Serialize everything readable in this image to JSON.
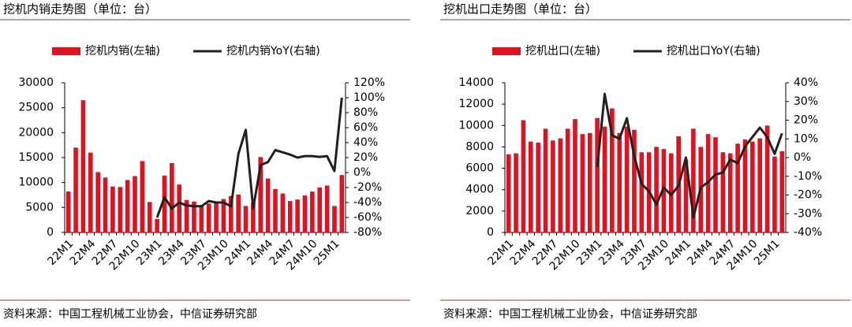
{
  "chart_data": [
    {
      "type": "bar-line",
      "title": "挖机内销走势图（单位：台）",
      "source": "资料来源：中国工程机械工业协会，中信证券研究部",
      "categories": [
        "22M1",
        null,
        null,
        "22M4",
        null,
        null,
        "22M7",
        null,
        null,
        "22M10",
        null,
        null,
        "23M1",
        null,
        null,
        "23M4",
        null,
        null,
        "23M7",
        null,
        null,
        "23M10",
        null,
        null,
        "24M1",
        null,
        null,
        "24M4",
        null,
        null,
        "24M7",
        null,
        null,
        "24M10",
        null,
        null,
        "25M1",
        null
      ],
      "series": [
        {
          "name": "挖机内销(左轴)",
          "type": "bar",
          "color": "#e0121f",
          "values": [
            8200,
            17000,
            26500,
            16000,
            12100,
            11000,
            9200,
            9100,
            10500,
            11300,
            14300,
            6100,
            2700,
            11400,
            13900,
            9600,
            6500,
            6200,
            5500,
            5800,
            6100,
            6700,
            7300,
            7600,
            5300,
            6000,
            15100,
            10800,
            8700,
            7800,
            6300,
            6600,
            7400,
            8200,
            9000,
            9400,
            5300,
            11500
          ]
        },
        {
          "name": "挖机内销YoY(右轴)",
          "type": "line",
          "axis": "y2",
          "color": "#231f20",
          "values": [
            null,
            null,
            null,
            null,
            null,
            null,
            null,
            null,
            null,
            null,
            null,
            null,
            -60,
            -33,
            -48,
            -40,
            -44,
            -45,
            -45,
            -38,
            -40,
            -40,
            -45,
            25,
            57,
            -48,
            10,
            14,
            30,
            27,
            24,
            20,
            22,
            22,
            21,
            22,
            2,
            100
          ]
        }
      ],
      "ylim": [
        0,
        30000
      ],
      "yticks": [
        0,
        5000,
        10000,
        15000,
        20000,
        25000,
        30000
      ],
      "y2lim": [
        -80,
        120
      ],
      "y2ticks": [
        {
          "value": -80,
          "label": "-80%"
        },
        {
          "value": -60,
          "label": "-60%"
        },
        {
          "value": -40,
          "label": "-40%"
        },
        {
          "value": -20,
          "label": "-20%"
        },
        {
          "value": 0,
          "label": "0%"
        },
        {
          "value": 20,
          "label": "20%"
        },
        {
          "value": 40,
          "label": "40%"
        },
        {
          "value": 60,
          "label": "60%"
        },
        {
          "value": 80,
          "label": "80%"
        },
        {
          "value": 100,
          "label": "100%"
        },
        {
          "value": 120,
          "label": "120%"
        }
      ]
    },
    {
      "type": "bar-line",
      "title": "挖机出口走势图（单位：台）",
      "source": "资料来源：中国工程机械工业协会，中信证券研究部",
      "categories": [
        "22M1",
        null,
        null,
        "22M4",
        null,
        null,
        "22M7",
        null,
        null,
        "22M10",
        null,
        null,
        "23M1",
        null,
        null,
        "23M4",
        null,
        null,
        "23M7",
        null,
        null,
        "23M10",
        null,
        null,
        "24M1",
        null,
        null,
        "24M4",
        null,
        null,
        "24M7",
        null,
        null,
        "24M10",
        null,
        null,
        "25M1",
        null
      ],
      "series": [
        {
          "name": "挖机出口(左轴)",
          "type": "bar",
          "color": "#e0121f",
          "values": [
            7300,
            7400,
            10500,
            8500,
            8400,
            9700,
            8600,
            8800,
            9700,
            10600,
            9200,
            9300,
            10700,
            9900,
            11600,
            9300,
            9900,
            9600,
            7500,
            7500,
            8000,
            7800,
            7400,
            9000,
            6800,
            9700,
            8000,
            9200,
            8900,
            7500,
            7400,
            8300,
            8700,
            8500,
            8800,
            10000,
            7100,
            7600
          ]
        },
        {
          "name": "挖机出口YoY(右轴)",
          "type": "line",
          "axis": "y2",
          "color": "#231f20",
          "values": [
            null,
            null,
            null,
            null,
            null,
            null,
            null,
            null,
            null,
            null,
            null,
            null,
            -5,
            34,
            12,
            10,
            21,
            1,
            -14,
            -18,
            -25,
            -16,
            -20,
            -15,
            0,
            -32,
            -16,
            -13,
            -9,
            -8,
            -1,
            -3,
            6,
            11,
            16,
            11,
            2,
            13
          ]
        }
      ],
      "ylim": [
        0,
        14000
      ],
      "yticks": [
        0,
        2000,
        4000,
        6000,
        8000,
        10000,
        12000,
        14000
      ],
      "y2lim": [
        -40,
        40
      ],
      "y2ticks": [
        {
          "value": -40,
          "label": "-40%"
        },
        {
          "value": -30,
          "label": "-30%"
        },
        {
          "value": -20,
          "label": "-20%"
        },
        {
          "value": -10,
          "label": "-10%"
        },
        {
          "value": 0,
          "label": "0%"
        },
        {
          "value": 10,
          "label": "10%"
        },
        {
          "value": 20,
          "label": "20%"
        },
        {
          "value": 30,
          "label": "30%"
        },
        {
          "value": 40,
          "label": "40%"
        }
      ]
    }
  ]
}
